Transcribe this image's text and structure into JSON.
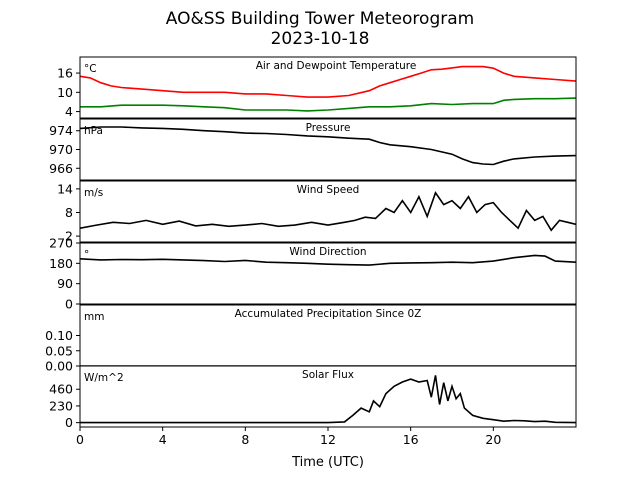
{
  "title": "AO&SS Building Tower Meteorogram",
  "subtitle": "2023-10-18",
  "xlabel": "Time (UTC)",
  "chart_data": [
    {
      "type": "line",
      "title": "Air and Dewpoint Temperature",
      "units": "°C",
      "xlim": [
        0,
        24
      ],
      "xticks": [
        0,
        4,
        8,
        12,
        16,
        20
      ],
      "ylim": [
        2,
        21
      ],
      "yticks": [
        4,
        10,
        16
      ],
      "series": [
        {
          "color": "#ff0000",
          "x": [
            0,
            0.5,
            1,
            1.5,
            2,
            3,
            4,
            5,
            6,
            7,
            8,
            9,
            10,
            11,
            12,
            13,
            14,
            14.5,
            15,
            15.5,
            16,
            16.5,
            17,
            17.5,
            18,
            18.5,
            19,
            19.5,
            20,
            20.5,
            21,
            22,
            23,
            24
          ],
          "y": [
            15,
            14.5,
            13,
            12,
            11.5,
            11,
            10.5,
            10,
            10,
            10,
            9.5,
            9.5,
            9,
            8.5,
            8.5,
            9,
            10.5,
            12,
            13,
            14,
            15,
            16,
            17,
            17.2,
            17.6,
            18,
            18,
            18,
            17.5,
            16,
            15,
            14.5,
            14,
            13.5
          ]
        },
        {
          "color": "#008000",
          "x": [
            0,
            1,
            2,
            3,
            4,
            5,
            6,
            7,
            8,
            9,
            10,
            11,
            12,
            13,
            14,
            15,
            16,
            17,
            18,
            19,
            20,
            20.5,
            21,
            22,
            23,
            24
          ],
          "y": [
            5.5,
            5.5,
            6,
            6,
            6,
            5.8,
            5.5,
            5.2,
            4.5,
            4.5,
            4.5,
            4.2,
            4.5,
            5,
            5.5,
            5.5,
            5.8,
            6.5,
            6.2,
            6.5,
            6.5,
            7.5,
            7.8,
            8,
            8,
            8.2
          ]
        }
      ]
    },
    {
      "type": "line",
      "title": "Pressure",
      "units": "hPa",
      "xlim": [
        0,
        24
      ],
      "ylim": [
        963.5,
        976.5
      ],
      "yticks": [
        966,
        970,
        974
      ],
      "series": [
        {
          "color": "#000000",
          "x": [
            0,
            1,
            2,
            3,
            4,
            5,
            6,
            7,
            8,
            9,
            10,
            11,
            12,
            13,
            14,
            14.5,
            15,
            16,
            17,
            18,
            18.5,
            19,
            19.5,
            20,
            20.5,
            21,
            22,
            23,
            24
          ],
          "y": [
            974.5,
            974.8,
            974.8,
            974.6,
            974.5,
            974.3,
            974.0,
            973.8,
            973.5,
            973.4,
            973.2,
            972.9,
            972.7,
            972.4,
            972.2,
            971.5,
            971.0,
            970.6,
            970.0,
            969.0,
            968.0,
            967.2,
            966.9,
            966.8,
            967.5,
            968.0,
            968.4,
            968.6,
            968.7
          ]
        }
      ]
    },
    {
      "type": "line",
      "title": "Wind Speed",
      "units": "m/s",
      "xlim": [
        0,
        24
      ],
      "ylim": [
        0.5,
        16
      ],
      "yticks": [
        2,
        8,
        14
      ],
      "series": [
        {
          "color": "#000000",
          "x": [
            0,
            0.8,
            1.6,
            2.4,
            3.2,
            4,
            4.8,
            5.6,
            6.4,
            7.2,
            8,
            8.8,
            9.6,
            10.4,
            11.2,
            12,
            12.8,
            13.3,
            13.8,
            14.3,
            14.8,
            15.2,
            15.6,
            16,
            16.4,
            16.8,
            17.2,
            17.6,
            18,
            18.4,
            18.8,
            19.2,
            19.6,
            20,
            20.4,
            20.8,
            21.2,
            21.6,
            22,
            22.4,
            22.8,
            23.2,
            23.6,
            24
          ],
          "y": [
            4,
            4.8,
            5.5,
            5.2,
            6,
            5,
            5.8,
            4.6,
            5,
            4.5,
            4.8,
            5.2,
            4.5,
            4.8,
            5.5,
            4.8,
            5.5,
            6,
            6.8,
            6.5,
            9,
            8,
            11,
            8,
            12,
            7,
            13,
            10,
            11,
            9,
            12,
            8,
            10,
            10.5,
            8,
            6,
            4,
            8.5,
            6,
            7,
            3.5,
            6,
            5.5,
            5
          ]
        }
      ]
    },
    {
      "type": "line",
      "title": "Wind Direction",
      "units": "°",
      "xlim": [
        0,
        24
      ],
      "ylim": [
        0,
        270
      ],
      "yticks": [
        0,
        90,
        180,
        270
      ],
      "series": [
        {
          "color": "#000000",
          "x": [
            0,
            1,
            2,
            3,
            4,
            5,
            6,
            7,
            8,
            9,
            10,
            11,
            12,
            13,
            14,
            15,
            16,
            17,
            18,
            19,
            20,
            21,
            22,
            22.5,
            23,
            24
          ],
          "y": [
            200,
            195,
            197,
            196,
            198,
            195,
            192,
            188,
            193,
            185,
            183,
            180,
            176,
            174,
            172,
            180,
            182,
            183,
            185,
            183,
            190,
            205,
            215,
            212,
            190,
            185
          ]
        }
      ]
    },
    {
      "type": "line",
      "title": "Accumulated Precipitation Since 0Z",
      "units": "mm",
      "xlim": [
        0,
        24
      ],
      "ylim": [
        0,
        0.2
      ],
      "yticks": [
        0.0,
        0.05,
        0.1
      ],
      "yticklabels": [
        "0.00",
        "0.05",
        "0.10"
      ],
      "series": [
        {
          "color": "#000000",
          "x": [
            0,
            24
          ],
          "y": [
            0,
            0
          ]
        }
      ]
    },
    {
      "type": "line",
      "title": "Solar Flux",
      "units": "W/m^2",
      "xlim": [
        0,
        24
      ],
      "ylim": [
        -60,
        780
      ],
      "yticks": [
        0,
        230,
        460
      ],
      "series": [
        {
          "color": "#000000",
          "x": [
            0,
            12,
            12.8,
            13.2,
            13.6,
            14.0,
            14.2,
            14.5,
            14.8,
            15.2,
            15.6,
            16.0,
            16.4,
            16.8,
            17.0,
            17.2,
            17.4,
            17.6,
            17.8,
            18.0,
            18.2,
            18.4,
            18.6,
            19.0,
            19.5,
            20.0,
            20.5,
            21.0,
            21.5,
            22.0,
            22.5,
            23.0,
            24
          ],
          "y": [
            0,
            0,
            10,
            100,
            200,
            150,
            300,
            220,
            400,
            500,
            560,
            600,
            560,
            580,
            350,
            650,
            250,
            550,
            300,
            500,
            330,
            400,
            200,
            100,
            60,
            40,
            20,
            30,
            25,
            15,
            20,
            5,
            0
          ]
        }
      ]
    }
  ]
}
